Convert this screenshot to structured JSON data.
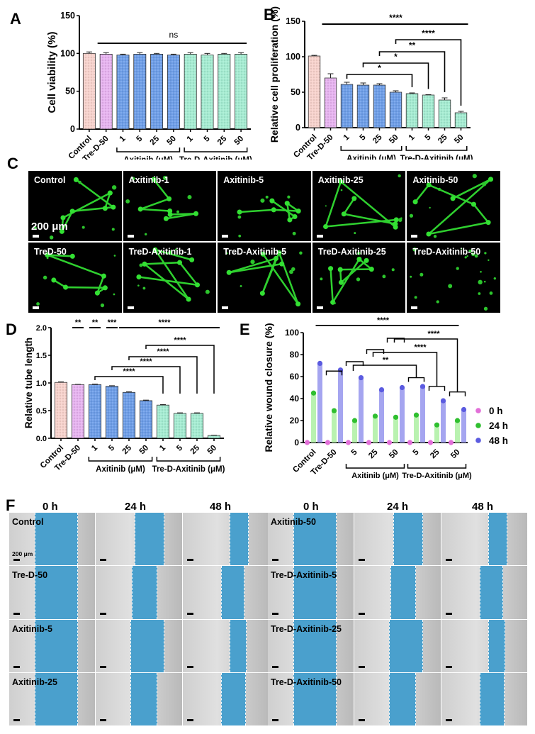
{
  "panels": {
    "A": {
      "letter": "A"
    },
    "B": {
      "letter": "B"
    },
    "C": {
      "letter": "C"
    },
    "D": {
      "letter": "D"
    },
    "E": {
      "letter": "E"
    },
    "F": {
      "letter": "F"
    }
  },
  "colors": {
    "control": "#f7d2cc",
    "tred50": "#e7b3f0",
    "axitinib": "#6e9ee8",
    "tred_axitinib": "#a5ecd2",
    "wound_gap": "#4aa0cd",
    "dot_0h": "#e26fd8",
    "dot_24h": "#2fbf2f",
    "dot_48h": "#5b5be0"
  },
  "common": {
    "categories": [
      "Control",
      "Tre-D-50",
      "1",
      "5",
      "25",
      "50",
      "1",
      "5",
      "25",
      "50"
    ],
    "group_axitinib": "Axitinib (μM)",
    "group_tred_axitinib": "Tre-D-Axitinib (μM)"
  },
  "chart_data": [
    {
      "id": "A",
      "type": "bar",
      "title": "",
      "ylabel": "Cell viability (%)",
      "xlabel": "",
      "ylim": [
        0,
        150
      ],
      "yticks": [
        0,
        50,
        100,
        150
      ],
      "categories": [
        "Control",
        "Tre-D-50",
        "Axitinib 1",
        "Axitinib 5",
        "Axitinib 25",
        "Axitinib 50",
        "Tre-D-Axitinib 1",
        "Tre-D-Axitinib 5",
        "Tre-D-Axitinib 25",
        "Tre-D-Axitinib 50"
      ],
      "values": [
        100,
        99,
        98,
        99,
        99,
        98,
        99,
        98,
        99,
        99
      ],
      "errors": [
        2,
        2,
        1,
        2,
        1,
        1,
        2,
        2,
        1,
        2
      ],
      "annotations": [
        {
          "text": "ns",
          "from": 1,
          "to": 9
        }
      ]
    },
    {
      "id": "B",
      "type": "bar",
      "ylabel": "Relative cell proliferation (%)",
      "ylim": [
        0,
        150
      ],
      "yticks": [
        0,
        50,
        100,
        150
      ],
      "categories": [
        "Control",
        "Tre-D-50",
        "Axitinib 1",
        "Axitinib 5",
        "Axitinib 25",
        "Axitinib 50",
        "Tre-D-Axitinib 1",
        "Tre-D-Axitinib 5",
        "Tre-D-Axitinib 25",
        "Tre-D-Axitinib 50"
      ],
      "values": [
        101,
        70,
        61,
        60,
        60,
        50,
        48,
        46,
        39,
        21
      ],
      "errors": [
        1,
        6,
        3,
        3,
        2,
        2,
        1,
        0.5,
        3,
        2
      ],
      "annotations": [
        {
          "text": "****",
          "from": 1,
          "to": 9
        },
        {
          "text": "****",
          "from": 5,
          "to": 9
        },
        {
          "text": "**",
          "from": 4,
          "to": 8
        },
        {
          "text": "*",
          "from": 3,
          "to": 7
        },
        {
          "text": "*",
          "from": 2,
          "to": 6
        }
      ]
    },
    {
      "id": "D",
      "type": "bar",
      "ylabel": "Relative tube length",
      "ylim": [
        0,
        2.0
      ],
      "yticks": [
        0.0,
        0.5,
        1.0,
        1.5,
        2.0
      ],
      "categories": [
        "Control",
        "Tre-D-50",
        "Axitinib 1",
        "Axitinib 5",
        "Axitinib 25",
        "Axitinib 50",
        "Tre-D-Axitinib 1",
        "Tre-D-Axitinib 5",
        "Tre-D-Axitinib 25",
        "Tre-D-Axitinib 50"
      ],
      "values": [
        1.01,
        0.97,
        0.97,
        0.94,
        0.83,
        0.68,
        0.6,
        0.45,
        0.45,
        0.05
      ],
      "errors": [
        0.01,
        0.005,
        0.01,
        0.01,
        0.01,
        0.01,
        0.01,
        0.01,
        0.01,
        0.005
      ],
      "annotations": [
        {
          "text": "**",
          "from": 1,
          "to": 1
        },
        {
          "text": "**",
          "from": 2,
          "to": 2
        },
        {
          "text": "***",
          "from": 3,
          "to": 3
        },
        {
          "text": "****",
          "from": 4,
          "to": 9
        },
        {
          "text": "****",
          "from": 5,
          "to": 9
        },
        {
          "text": "****",
          "from": 4,
          "to": 8
        },
        {
          "text": "****",
          "from": 3,
          "to": 7
        },
        {
          "text": "****",
          "from": 2,
          "to": 6
        }
      ]
    },
    {
      "id": "E",
      "type": "bar",
      "ylabel": "Relative wound closure (%)",
      "ylim": [
        0,
        100
      ],
      "yticks": [
        0,
        20,
        40,
        60,
        80,
        100
      ],
      "categories": [
        "Control",
        "Tre-D-50",
        "Axitinib 5",
        "Axitinib 25",
        "Axitinib 50",
        "Tre-D-Axitinib 5",
        "Tre-D-Axitinib 25",
        "Tre-D-Axitinib 50"
      ],
      "tick_labels": [
        "Control",
        "Tre-D-50",
        "5",
        "25",
        "50",
        "5",
        "25",
        "50"
      ],
      "series": [
        {
          "name": "0 h",
          "values": [
            0,
            0,
            0,
            0,
            0,
            0,
            0,
            0
          ]
        },
        {
          "name": "24 h",
          "values": [
            45,
            29,
            20,
            24,
            23,
            25,
            16,
            20
          ]
        },
        {
          "name": "48 h",
          "values": [
            72,
            66,
            59,
            48,
            50,
            51,
            38,
            30
          ]
        }
      ],
      "legend": [
        "0 h",
        "24 h",
        "48 h"
      ],
      "legend_position": "right",
      "annotations": [
        {
          "text": "****",
          "from": 1,
          "to": 7
        },
        {
          "text": "****",
          "from": 4,
          "to": 7
        },
        {
          "text": "****",
          "from": 3,
          "to": 6
        },
        {
          "text": "**",
          "from": 2,
          "to": 5
        }
      ]
    }
  ],
  "panelC": {
    "scale_text": "200 μm",
    "images": [
      {
        "label": "Control"
      },
      {
        "label": "Axitinib-1"
      },
      {
        "label": "Axitinib-5"
      },
      {
        "label": "Axitinib-25"
      },
      {
        "label": "Axitinib-50"
      },
      {
        "label": "TreD-50"
      },
      {
        "label": "TreD-Axitinib-1"
      },
      {
        "label": "TreD-Axitinib-5"
      },
      {
        "label": "TreD-Axitinib-25"
      },
      {
        "label": "TreD-Axitinib-50"
      }
    ]
  },
  "panelF": {
    "time_headers": [
      "0 h",
      "24 h",
      "48 h"
    ],
    "scale_text": "200 μm",
    "left_rows": [
      "Control",
      "Tre-D-50",
      "Axitinib-5",
      "Axitinib-25"
    ],
    "right_rows": [
      "Axitinib-50",
      "Tre-D-Axitinib-5",
      "Tre-D-Axitinib-25",
      "Tre-D-Axitinib-50"
    ]
  }
}
